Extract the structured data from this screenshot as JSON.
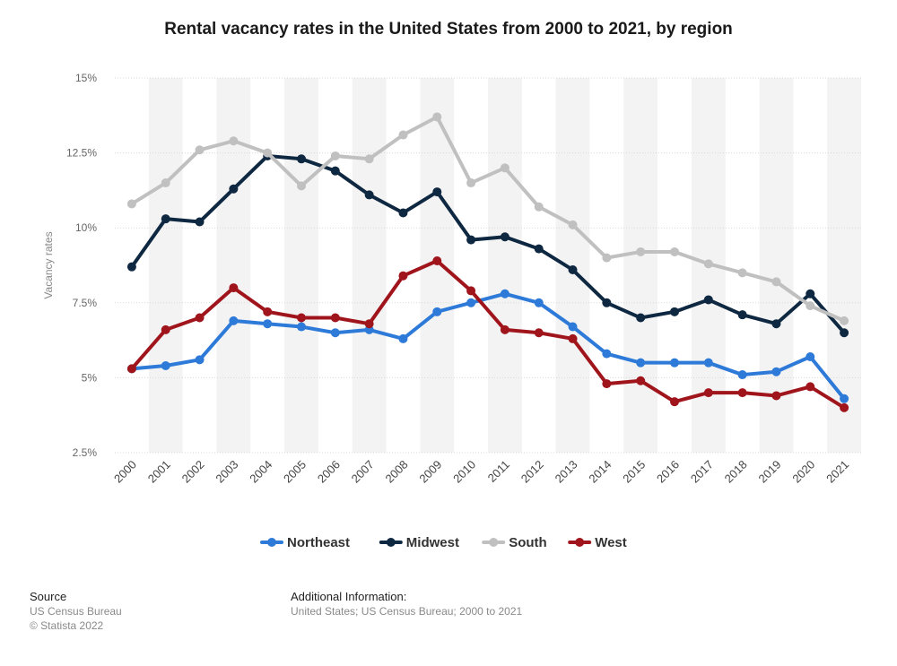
{
  "chart_data": {
    "type": "line",
    "title": "Rental vacancy rates in the United States from 2000 to 2021, by region",
    "ylabel": "Vacancy rates",
    "xlabel": "",
    "ylim": [
      2.5,
      15
    ],
    "yticks": [
      2.5,
      5,
      7.5,
      10,
      12.5,
      15
    ],
    "ytick_labels": [
      "2.5%",
      "5%",
      "7.5%",
      "10%",
      "12.5%",
      "15%"
    ],
    "categories": [
      "2000",
      "2001",
      "2002",
      "2003",
      "2004",
      "2005",
      "2006",
      "2007",
      "2008",
      "2009",
      "2010",
      "2011",
      "2012",
      "2013",
      "2014",
      "2015",
      "2016",
      "2017",
      "2018",
      "2019",
      "2020",
      "2021"
    ],
    "legend_position": "bottom",
    "series": [
      {
        "name": "Northeast",
        "color": "#2e7ad8",
        "values": [
          5.3,
          5.4,
          5.6,
          6.9,
          6.8,
          6.7,
          6.5,
          6.6,
          6.3,
          7.2,
          7.5,
          7.8,
          7.5,
          6.7,
          5.8,
          5.5,
          5.5,
          5.5,
          5.1,
          5.2,
          5.7,
          4.3
        ]
      },
      {
        "name": "Midwest",
        "color": "#0f2841",
        "values": [
          8.7,
          10.3,
          10.2,
          11.3,
          12.4,
          12.3,
          11.9,
          11.1,
          10.5,
          11.2,
          9.6,
          9.7,
          9.3,
          8.6,
          7.5,
          7.0,
          7.2,
          7.6,
          7.1,
          6.8,
          7.8,
          6.5
        ]
      },
      {
        "name": "South",
        "color": "#c0c0c0",
        "values": [
          10.8,
          11.5,
          12.6,
          12.9,
          12.5,
          11.4,
          12.4,
          12.3,
          13.1,
          13.7,
          11.5,
          12.0,
          10.7,
          10.1,
          9.0,
          9.2,
          9.2,
          8.8,
          8.5,
          8.2,
          7.4,
          6.9
        ]
      },
      {
        "name": "West",
        "color": "#a0151c",
        "values": [
          5.3,
          6.6,
          7.0,
          8.0,
          7.2,
          7.0,
          7.0,
          6.8,
          8.4,
          8.9,
          7.9,
          6.6,
          6.5,
          6.3,
          4.8,
          4.9,
          4.2,
          4.5,
          4.5,
          4.4,
          4.7,
          4.0
        ]
      }
    ]
  },
  "footer": {
    "source_heading": "Source",
    "source_lines": [
      "US Census Bureau",
      "© Statista 2022"
    ],
    "info_heading": "Additional Information:",
    "info_text": "United States; US Census Bureau; 2000 to 2021"
  }
}
